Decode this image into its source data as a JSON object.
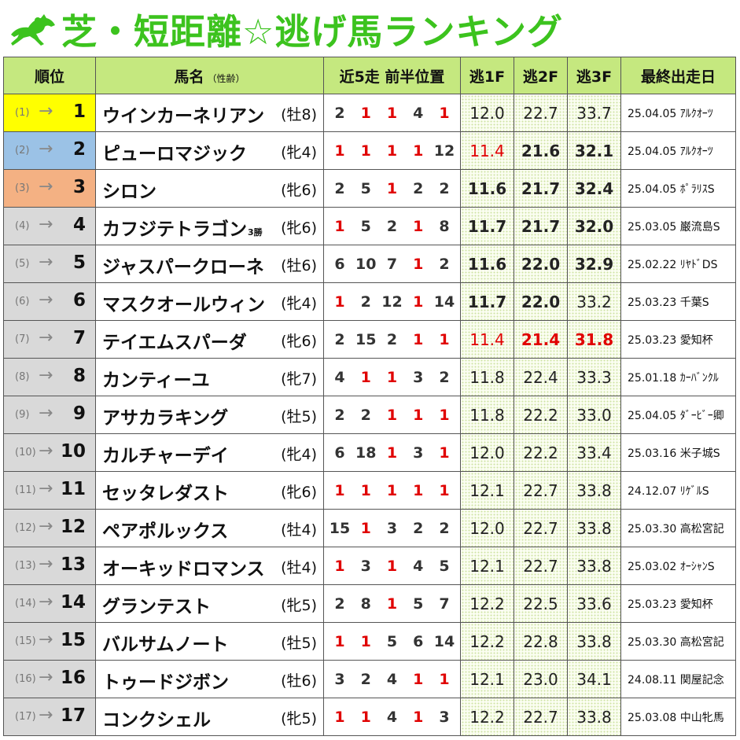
{
  "title": "芝・短距離☆逃げ馬ランキング",
  "headers": {
    "rank": "順位",
    "name": "馬名",
    "name_sub": "（性齢）",
    "positions": "近5走 前半位置",
    "f1": "逃1F",
    "f2": "逃2F",
    "f3": "逃3F",
    "last_race": "最終出走日"
  },
  "arrow_glyph": "→",
  "rows": [
    {
      "prev": "(1)",
      "rank": "1",
      "name": "ウインカーネリアン",
      "note": "",
      "sex": "(牡8)",
      "pos": [
        {
          "v": "2",
          "red": false
        },
        {
          "v": "1",
          "red": true
        },
        {
          "v": "1",
          "red": true
        },
        {
          "v": "4",
          "red": false
        },
        {
          "v": "1",
          "red": true
        }
      ],
      "f1": {
        "v": "12.0",
        "bold": false,
        "red": false
      },
      "f2": {
        "v": "22.7",
        "bold": false,
        "red": false
      },
      "f3": {
        "v": "33.7",
        "bold": false,
        "red": false
      },
      "last": "25.04.05 ｱﾙｸｵｰﾂ"
    },
    {
      "prev": "(2)",
      "rank": "2",
      "name": "ピューロマジック",
      "note": "",
      "sex": "(牝4)",
      "pos": [
        {
          "v": "1",
          "red": true
        },
        {
          "v": "1",
          "red": true
        },
        {
          "v": "1",
          "red": true
        },
        {
          "v": "1",
          "red": true
        },
        {
          "v": "12",
          "red": false
        }
      ],
      "f1": {
        "v": "11.4",
        "bold": false,
        "red": true
      },
      "f2": {
        "v": "21.6",
        "bold": true,
        "red": false
      },
      "f3": {
        "v": "32.1",
        "bold": true,
        "red": false
      },
      "last": "25.04.05 ｱﾙｸｵｰﾂ"
    },
    {
      "prev": "(3)",
      "rank": "3",
      "name": "シロン",
      "note": "",
      "sex": "(牝6)",
      "pos": [
        {
          "v": "2",
          "red": false
        },
        {
          "v": "5",
          "red": false
        },
        {
          "v": "1",
          "red": true
        },
        {
          "v": "2",
          "red": false
        },
        {
          "v": "2",
          "red": false
        }
      ],
      "f1": {
        "v": "11.6",
        "bold": true,
        "red": false
      },
      "f2": {
        "v": "21.7",
        "bold": true,
        "red": false
      },
      "f3": {
        "v": "32.4",
        "bold": true,
        "red": false
      },
      "last": "25.04.05 ﾎﾟﾗﾘｽS"
    },
    {
      "prev": "(4)",
      "rank": "4",
      "name": "カフジテトラゴン",
      "note": "3勝",
      "sex": "(牝6)",
      "pos": [
        {
          "v": "1",
          "red": true
        },
        {
          "v": "5",
          "red": false
        },
        {
          "v": "2",
          "red": false
        },
        {
          "v": "1",
          "red": true
        },
        {
          "v": "8",
          "red": false
        }
      ],
      "f1": {
        "v": "11.7",
        "bold": true,
        "red": false
      },
      "f2": {
        "v": "21.7",
        "bold": true,
        "red": false
      },
      "f3": {
        "v": "32.0",
        "bold": true,
        "red": false
      },
      "last": "25.03.05 巌流島S"
    },
    {
      "prev": "(5)",
      "rank": "5",
      "name": "ジャスパークローネ",
      "note": "",
      "sex": "(牡6)",
      "pos": [
        {
          "v": "6",
          "red": false
        },
        {
          "v": "10",
          "red": false
        },
        {
          "v": "7",
          "red": false
        },
        {
          "v": "1",
          "red": true
        },
        {
          "v": "2",
          "red": false
        }
      ],
      "f1": {
        "v": "11.6",
        "bold": true,
        "red": false
      },
      "f2": {
        "v": "22.0",
        "bold": true,
        "red": false
      },
      "f3": {
        "v": "32.9",
        "bold": true,
        "red": false
      },
      "last": "25.02.22 ﾘﾔﾄﾞDS"
    },
    {
      "prev": "(6)",
      "rank": "6",
      "name": "マスクオールウィン",
      "note": "",
      "sex": "(牝4)",
      "pos": [
        {
          "v": "1",
          "red": true
        },
        {
          "v": "2",
          "red": false
        },
        {
          "v": "12",
          "red": false
        },
        {
          "v": "1",
          "red": true
        },
        {
          "v": "14",
          "red": false
        }
      ],
      "f1": {
        "v": "11.7",
        "bold": true,
        "red": false
      },
      "f2": {
        "v": "22.0",
        "bold": true,
        "red": false
      },
      "f3": {
        "v": "33.2",
        "bold": false,
        "red": false
      },
      "last": "25.03.23 千葉S"
    },
    {
      "prev": "(7)",
      "rank": "7",
      "name": "テイエムスパーダ",
      "note": "",
      "sex": "(牝6)",
      "pos": [
        {
          "v": "2",
          "red": false
        },
        {
          "v": "15",
          "red": false
        },
        {
          "v": "2",
          "red": false
        },
        {
          "v": "1",
          "red": true
        },
        {
          "v": "1",
          "red": true
        }
      ],
      "f1": {
        "v": "11.4",
        "bold": false,
        "red": true
      },
      "f2": {
        "v": "21.4",
        "bold": true,
        "red": true
      },
      "f3": {
        "v": "31.8",
        "bold": true,
        "red": true
      },
      "last": "25.03.23 愛知杯"
    },
    {
      "prev": "(8)",
      "rank": "8",
      "name": "カンティーユ",
      "note": "",
      "sex": "(牝7)",
      "pos": [
        {
          "v": "4",
          "red": false
        },
        {
          "v": "1",
          "red": true
        },
        {
          "v": "1",
          "red": true
        },
        {
          "v": "3",
          "red": false
        },
        {
          "v": "2",
          "red": false
        }
      ],
      "f1": {
        "v": "11.8",
        "bold": false,
        "red": false
      },
      "f2": {
        "v": "22.4",
        "bold": false,
        "red": false
      },
      "f3": {
        "v": "33.3",
        "bold": false,
        "red": false
      },
      "last": "25.01.18 ｶｰﾊﾞﾝｸﾙ"
    },
    {
      "prev": "(9)",
      "rank": "9",
      "name": "アサカラキング",
      "note": "",
      "sex": "(牡5)",
      "pos": [
        {
          "v": "2",
          "red": false
        },
        {
          "v": "2",
          "red": false
        },
        {
          "v": "1",
          "red": true
        },
        {
          "v": "1",
          "red": true
        },
        {
          "v": "1",
          "red": true
        }
      ],
      "f1": {
        "v": "11.8",
        "bold": false,
        "red": false
      },
      "f2": {
        "v": "22.2",
        "bold": false,
        "red": false
      },
      "f3": {
        "v": "33.0",
        "bold": false,
        "red": false
      },
      "last": "25.04.05 ﾀﾞｰﾋﾞｰ卿"
    },
    {
      "prev": "(10)",
      "rank": "10",
      "name": "カルチャーデイ",
      "note": "",
      "sex": "(牝4)",
      "pos": [
        {
          "v": "6",
          "red": false
        },
        {
          "v": "18",
          "red": false
        },
        {
          "v": "1",
          "red": true
        },
        {
          "v": "3",
          "red": false
        },
        {
          "v": "1",
          "red": true
        }
      ],
      "f1": {
        "v": "12.0",
        "bold": false,
        "red": false
      },
      "f2": {
        "v": "22.2",
        "bold": false,
        "red": false
      },
      "f3": {
        "v": "33.4",
        "bold": false,
        "red": false
      },
      "last": "25.03.16 米子城S"
    },
    {
      "prev": "(11)",
      "rank": "11",
      "name": "セッタレダスト",
      "note": "",
      "sex": "(牝6)",
      "pos": [
        {
          "v": "1",
          "red": true
        },
        {
          "v": "1",
          "red": true
        },
        {
          "v": "1",
          "red": true
        },
        {
          "v": "1",
          "red": true
        },
        {
          "v": "1",
          "red": true
        }
      ],
      "f1": {
        "v": "12.1",
        "bold": false,
        "red": false
      },
      "f2": {
        "v": "22.7",
        "bold": false,
        "red": false
      },
      "f3": {
        "v": "33.8",
        "bold": false,
        "red": false
      },
      "last": "24.12.07 ﾘｹﾞﾙS"
    },
    {
      "prev": "(12)",
      "rank": "12",
      "name": "ペアポルックス",
      "note": "",
      "sex": "(牡4)",
      "pos": [
        {
          "v": "15",
          "red": false
        },
        {
          "v": "1",
          "red": true
        },
        {
          "v": "3",
          "red": false
        },
        {
          "v": "2",
          "red": false
        },
        {
          "v": "2",
          "red": false
        }
      ],
      "f1": {
        "v": "12.0",
        "bold": false,
        "red": false
      },
      "f2": {
        "v": "22.7",
        "bold": false,
        "red": false
      },
      "f3": {
        "v": "33.8",
        "bold": false,
        "red": false
      },
      "last": "25.03.30 高松宮記"
    },
    {
      "prev": "(13)",
      "rank": "13",
      "name": "オーキッドロマンス",
      "note": "",
      "sex": "(牡4)",
      "pos": [
        {
          "v": "1",
          "red": true
        },
        {
          "v": "3",
          "red": false
        },
        {
          "v": "1",
          "red": true
        },
        {
          "v": "4",
          "red": false
        },
        {
          "v": "5",
          "red": false
        }
      ],
      "f1": {
        "v": "12.1",
        "bold": false,
        "red": false
      },
      "f2": {
        "v": "22.7",
        "bold": false,
        "red": false
      },
      "f3": {
        "v": "33.8",
        "bold": false,
        "red": false
      },
      "last": "25.03.02 ｵｰｼｬﾝS"
    },
    {
      "prev": "(14)",
      "rank": "14",
      "name": "グランテスト",
      "note": "",
      "sex": "(牝5)",
      "pos": [
        {
          "v": "2",
          "red": false
        },
        {
          "v": "8",
          "red": false
        },
        {
          "v": "1",
          "red": true
        },
        {
          "v": "5",
          "red": false
        },
        {
          "v": "7",
          "red": false
        }
      ],
      "f1": {
        "v": "12.2",
        "bold": false,
        "red": false
      },
      "f2": {
        "v": "22.5",
        "bold": false,
        "red": false
      },
      "f3": {
        "v": "33.6",
        "bold": false,
        "red": false
      },
      "last": "25.03.23 愛知杯"
    },
    {
      "prev": "(15)",
      "rank": "15",
      "name": "バルサムノート",
      "note": "",
      "sex": "(牡5)",
      "pos": [
        {
          "v": "1",
          "red": true
        },
        {
          "v": "1",
          "red": true
        },
        {
          "v": "5",
          "red": false
        },
        {
          "v": "6",
          "red": false
        },
        {
          "v": "14",
          "red": false
        }
      ],
      "f1": {
        "v": "12.2",
        "bold": false,
        "red": false
      },
      "f2": {
        "v": "22.8",
        "bold": false,
        "red": false
      },
      "f3": {
        "v": "33.8",
        "bold": false,
        "red": false
      },
      "last": "25.03.30 高松宮記"
    },
    {
      "prev": "(16)",
      "rank": "16",
      "name": "トゥードジボン",
      "note": "",
      "sex": "(牡6)",
      "pos": [
        {
          "v": "3",
          "red": false
        },
        {
          "v": "2",
          "red": false
        },
        {
          "v": "4",
          "red": false
        },
        {
          "v": "1",
          "red": true
        },
        {
          "v": "1",
          "red": true
        }
      ],
      "f1": {
        "v": "12.1",
        "bold": false,
        "red": false
      },
      "f2": {
        "v": "23.0",
        "bold": false,
        "red": false
      },
      "f3": {
        "v": "34.1",
        "bold": false,
        "red": false
      },
      "last": "24.08.11 関屋記念"
    },
    {
      "prev": "(17)",
      "rank": "17",
      "name": "コンクシェル",
      "note": "",
      "sex": "(牝5)",
      "pos": [
        {
          "v": "1",
          "red": true
        },
        {
          "v": "1",
          "red": true
        },
        {
          "v": "4",
          "red": false
        },
        {
          "v": "1",
          "red": true
        },
        {
          "v": "3",
          "red": false
        }
      ],
      "f1": {
        "v": "12.2",
        "bold": false,
        "red": false
      },
      "f2": {
        "v": "22.7",
        "bold": false,
        "red": false
      },
      "f3": {
        "v": "33.8",
        "bold": false,
        "red": false
      },
      "last": "25.03.08 中山牝馬"
    }
  ]
}
